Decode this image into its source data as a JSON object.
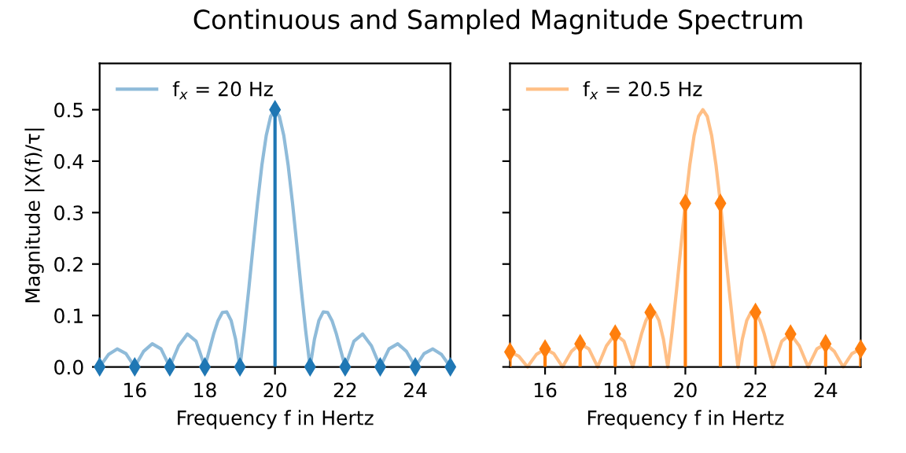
{
  "chart_data": [
    {
      "type": "line",
      "title": "Continuous and Sampled Magnitude Spectrum",
      "xlabel": "Frequency f in Hertz",
      "ylabel": "Magnitude |X(f)/τ|",
      "xlim": [
        15,
        25
      ],
      "xticks": [
        16,
        18,
        20,
        22,
        24
      ],
      "ylim": [
        0,
        0.59
      ],
      "yticks": [
        {
          "value": 0,
          "label": "0.0"
        },
        0.1,
        0.2,
        0.3,
        0.4,
        0.5
      ],
      "grid": false,
      "legend": "top left",
      "series": [
        {
          "name": "f$_{x}$ = 20 Hz",
          "color": "#8fbbd9",
          "x": [
            15,
            15.25,
            15.5,
            15.75,
            16,
            16.25,
            16.5,
            16.75,
            17,
            17.25,
            17.5,
            17.75,
            18,
            18.125,
            18.25,
            18.375,
            18.5,
            18.625,
            18.75,
            18.875,
            19,
            19.125,
            19.25,
            19.375,
            19.5,
            19.625,
            19.75,
            19.875,
            20,
            20.125,
            20.25,
            20.375,
            20.5,
            20.625,
            20.75,
            20.875,
            21,
            21.125,
            21.25,
            21.375,
            21.5,
            21.625,
            21.75,
            21.875,
            22,
            22.25,
            22.5,
            22.75,
            23,
            23.25,
            23.5,
            23.75,
            24,
            24.25,
            24.5,
            24.75,
            25
          ],
          "values": [
            0,
            0.024,
            0.035,
            0.026,
            0,
            0.03,
            0.045,
            0.035,
            0,
            0.041,
            0.064,
            0.05,
            0,
            0.032,
            0.064,
            0.09,
            0.106,
            0.107,
            0.09,
            0.054,
            0,
            0.07,
            0.15,
            0.235,
            0.318,
            0.392,
            0.45,
            0.487,
            0.5,
            0.487,
            0.45,
            0.392,
            0.318,
            0.235,
            0.15,
            0.07,
            0,
            0.054,
            0.09,
            0.107,
            0.106,
            0.09,
            0.064,
            0.032,
            0,
            0.05,
            0.064,
            0.041,
            0,
            0.035,
            0.045,
            0.03,
            0,
            0.026,
            0.035,
            0.024,
            0
          ]
        },
        {
          "type": "lollipop",
          "color": "#1f77b4",
          "marker": "diamond",
          "x": [
            15,
            16,
            17,
            18,
            19,
            20,
            21,
            22,
            23,
            24,
            25
          ],
          "values": [
            0,
            0,
            0,
            0,
            0,
            0.5,
            0,
            0,
            0,
            0,
            0
          ]
        }
      ]
    },
    {
      "type": "line",
      "xlabel": "Frequency f in Hertz",
      "xlim": [
        15,
        25
      ],
      "xticks": [
        16,
        18,
        20,
        22,
        24
      ],
      "ylim": [
        0,
        0.59
      ],
      "yticks": [
        0,
        0.1,
        0.2,
        0.3,
        0.4,
        0.5
      ],
      "tick_labels": "x",
      "grid": false,
      "legend": "top left",
      "series": [
        {
          "name": "f$_{x}$ = 20.5 Hz",
          "color": "#ffbf86",
          "x": [
            15,
            15.25,
            15.5,
            15.75,
            16,
            16.25,
            16.5,
            16.75,
            17,
            17.25,
            17.5,
            17.75,
            18,
            18.25,
            18.5,
            18.625,
            18.75,
            18.875,
            19,
            19.125,
            19.25,
            19.375,
            19.5,
            19.625,
            19.75,
            19.875,
            20,
            20.125,
            20.25,
            20.375,
            20.5,
            20.625,
            20.75,
            20.875,
            21,
            21.125,
            21.25,
            21.375,
            21.5,
            21.625,
            21.75,
            21.875,
            22,
            22.125,
            22.25,
            22.375,
            22.5,
            22.75,
            23,
            23.25,
            23.5,
            23.75,
            24,
            24.25,
            24.5,
            24.75,
            25
          ],
          "values": [
            0.029,
            0.021,
            0,
            0.024,
            0.035,
            0.026,
            0,
            0.03,
            0.045,
            0.035,
            0,
            0.041,
            0.064,
            0.05,
            0,
            0.032,
            0.064,
            0.09,
            0.106,
            0.107,
            0.09,
            0.054,
            0,
            0.07,
            0.15,
            0.235,
            0.318,
            0.392,
            0.45,
            0.487,
            0.5,
            0.487,
            0.45,
            0.392,
            0.318,
            0.235,
            0.15,
            0.07,
            0,
            0.054,
            0.09,
            0.107,
            0.106,
            0.09,
            0.064,
            0.032,
            0,
            0.05,
            0.064,
            0.041,
            0,
            0.035,
            0.045,
            0.03,
            0,
            0.026,
            0.035
          ]
        },
        {
          "type": "lollipop",
          "color": "#ff7f0e",
          "marker": "diamond",
          "x": [
            15,
            16,
            17,
            18,
            19,
            20,
            21,
            22,
            23,
            24,
            25
          ],
          "values": [
            0.029,
            0.035,
            0.045,
            0.064,
            0.106,
            0.318,
            0.318,
            0.106,
            0.064,
            0.045,
            0.035
          ]
        }
      ]
    }
  ]
}
